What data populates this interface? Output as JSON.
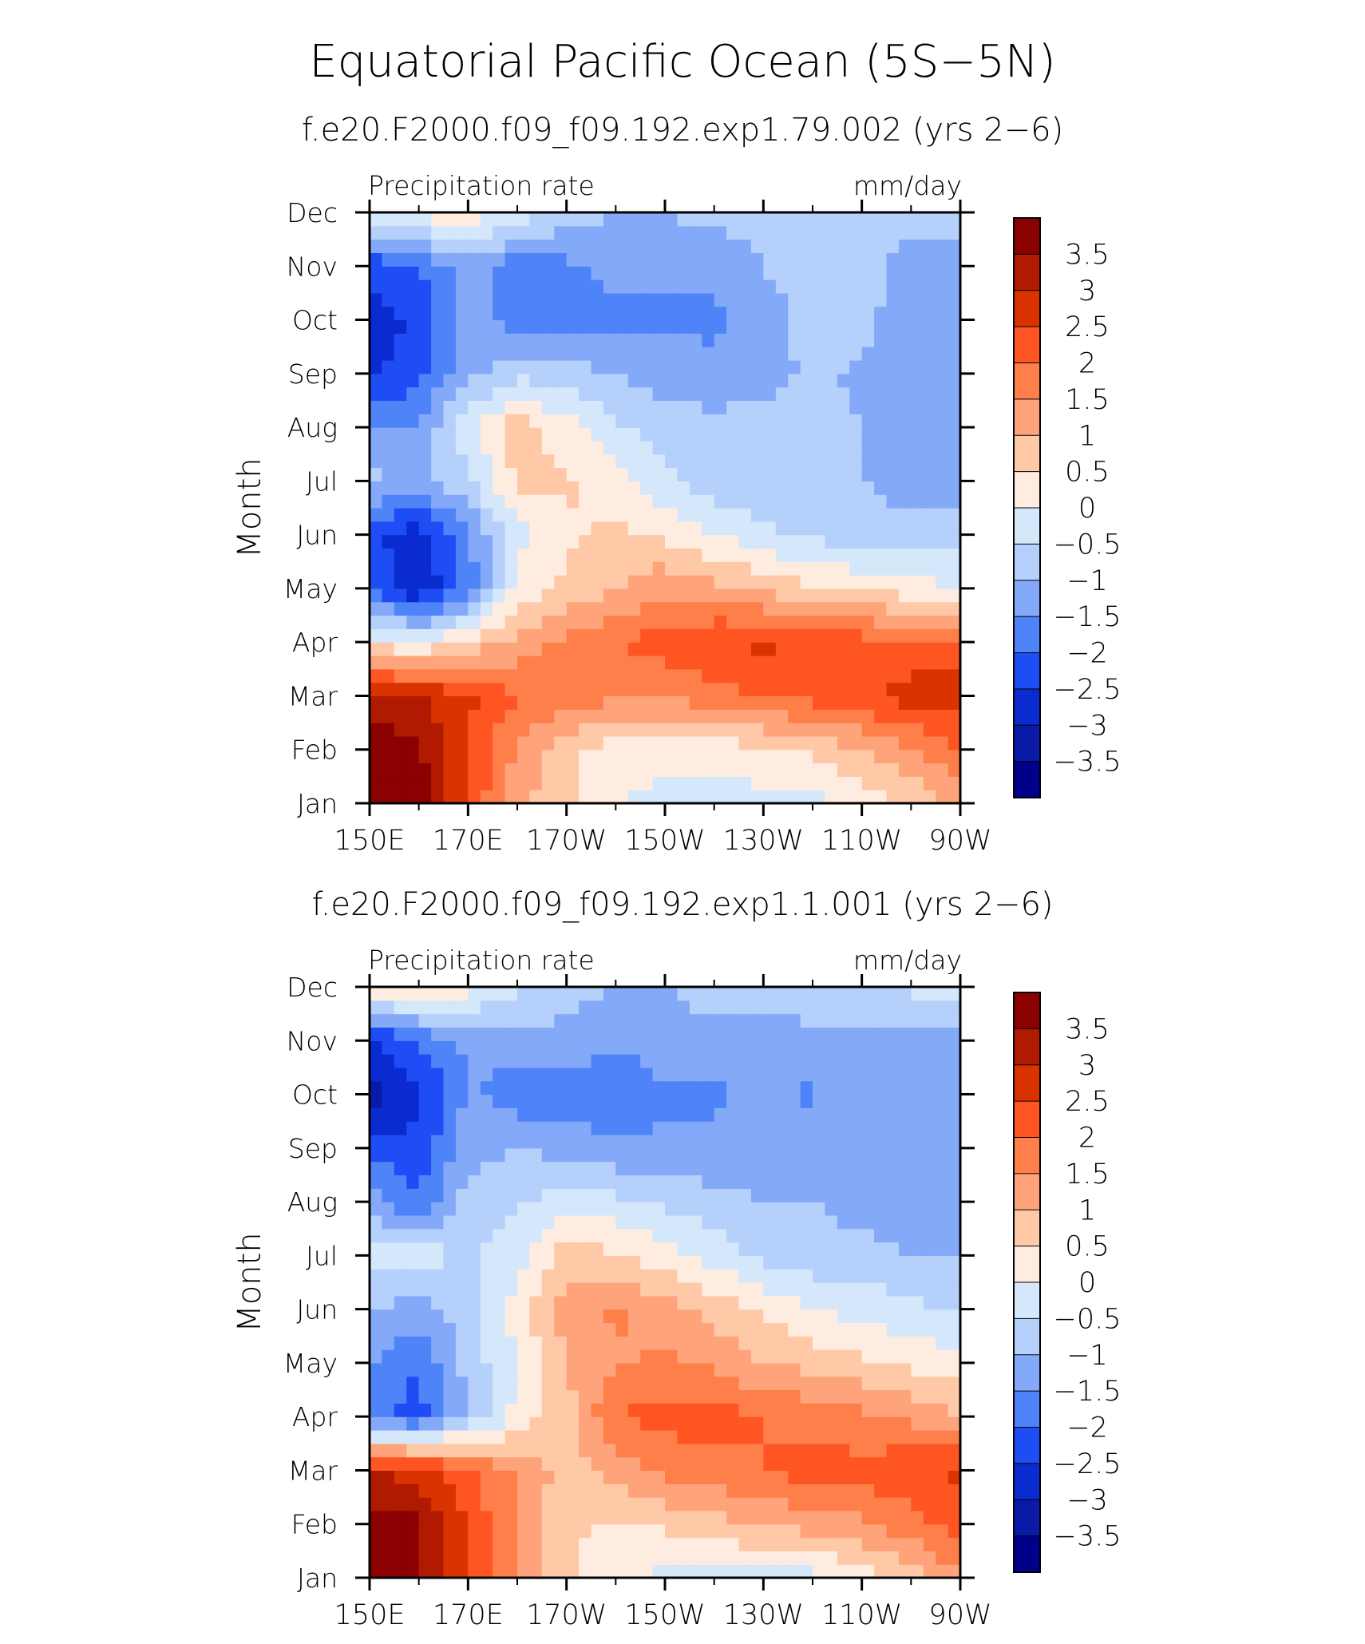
{
  "chart_data": {
    "title": "Equatorial Pacific Ocean (5S−5N)",
    "panels": [
      {
        "type": "heatmap",
        "subtitle": "f.e20.F2000.f09_f09.192.exp1.79.002 (yrs 2−6)",
        "variable_label": "Precipitation rate",
        "units_label": "mm/day",
        "xlabel": "",
        "ylabel": "Month",
        "x_ticks": [
          "150E",
          "170E",
          "170W",
          "150W",
          "130W",
          "110W",
          "90W"
        ],
        "x_values": [
          150,
          170,
          190,
          210,
          230,
          250,
          270
        ],
        "y_ticks": [
          "Jan",
          "Feb",
          "Mar",
          "Apr",
          "May",
          "Jun",
          "Jul",
          "Aug",
          "Sep",
          "Oct",
          "Nov",
          "Dec"
        ],
        "xlim": [
          150,
          270
        ],
        "grid": false,
        "z": [
          [
            4.0,
            3.8,
            2.4,
            1.2,
            0.6,
            0.0,
            -0.2,
            -0.2,
            -0.2,
            -0.2,
            0.2,
            0.6,
            1.2
          ],
          [
            4.0,
            3.6,
            2.6,
            1.4,
            0.6,
            0.3,
            0.2,
            0.2,
            0.4,
            0.6,
            1.0,
            1.4,
            2.0
          ],
          [
            3.2,
            3.0,
            2.6,
            2.0,
            1.8,
            1.6,
            1.6,
            1.8,
            2.0,
            2.2,
            2.4,
            2.8,
            2.8
          ],
          [
            0.3,
            0.0,
            0.6,
            1.2,
            1.6,
            2.0,
            2.2,
            2.5,
            2.6,
            2.4,
            2.2,
            2.0,
            2.0
          ],
          [
            -2.0,
            -3.0,
            -1.8,
            0.2,
            0.6,
            1.0,
            1.4,
            1.2,
            0.8,
            0.6,
            0.4,
            0.2,
            0.0
          ],
          [
            -2.4,
            -2.8,
            -1.6,
            -0.2,
            0.4,
            0.6,
            0.4,
            0.0,
            -0.4,
            -0.6,
            -0.8,
            -0.8,
            -0.8
          ],
          [
            -0.8,
            -1.2,
            -0.6,
            0.6,
            0.6,
            0.2,
            -0.4,
            -0.8,
            -0.8,
            -0.8,
            -1.0,
            -1.2,
            -1.2
          ],
          [
            -1.6,
            -1.4,
            -0.2,
            0.8,
            0.2,
            -0.4,
            -0.8,
            -0.8,
            -0.8,
            -0.8,
            -1.0,
            -1.4,
            -1.4
          ],
          [
            -2.6,
            -2.2,
            -1.2,
            -0.6,
            -0.8,
            -1.0,
            -1.2,
            -1.4,
            -1.2,
            -0.9,
            -1.1,
            -1.4,
            -1.4
          ],
          [
            -2.8,
            -2.4,
            -1.2,
            -1.8,
            -1.6,
            -1.6,
            -1.6,
            -1.6,
            -1.2,
            -0.8,
            -0.8,
            -1.4,
            -1.4
          ],
          [
            -2.4,
            -2.0,
            -1.2,
            -1.8,
            -1.6,
            -1.4,
            -1.4,
            -1.4,
            -1.0,
            -0.8,
            -0.8,
            -1.2,
            -1.2
          ],
          [
            0.0,
            0.2,
            0.4,
            -0.2,
            -0.8,
            -1.0,
            -1.0,
            -0.8,
            -0.8,
            -0.8,
            -0.8,
            -0.8,
            -0.8
          ]
        ]
      },
      {
        "type": "heatmap",
        "subtitle": "f.e20.F2000.f09_f09.192.exp1.1.001 (yrs 2−6)",
        "variable_label": "Precipitation rate",
        "units_label": "mm/day",
        "xlabel": "",
        "ylabel": "Month",
        "x_ticks": [
          "150E",
          "170E",
          "170W",
          "150W",
          "130W",
          "110W",
          "90W"
        ],
        "x_values": [
          150,
          170,
          190,
          210,
          230,
          250,
          270
        ],
        "y_ticks": [
          "Jan",
          "Feb",
          "Mar",
          "Apr",
          "May",
          "Jun",
          "Jul",
          "Aug",
          "Sep",
          "Oct",
          "Nov",
          "Dec"
        ],
        "xlim": [
          150,
          270
        ],
        "grid": false,
        "z": [
          [
            3.8,
            3.6,
            2.6,
            1.6,
            0.6,
            0.2,
            -0.2,
            -0.2,
            -0.2,
            -0.2,
            0.2,
            0.8,
            1.4
          ],
          [
            3.8,
            3.6,
            2.4,
            1.4,
            0.6,
            0.4,
            0.6,
            0.8,
            1.0,
            1.2,
            1.4,
            1.8,
            2.2
          ],
          [
            3.0,
            2.8,
            2.2,
            1.4,
            0.8,
            1.2,
            1.6,
            1.8,
            2.0,
            2.2,
            2.2,
            2.4,
            2.6
          ],
          [
            -1.8,
            -2.2,
            -1.0,
            0.2,
            0.8,
            2.0,
            2.2,
            2.2,
            2.0,
            1.8,
            1.6,
            1.4,
            1.0
          ],
          [
            -1.4,
            -2.0,
            -0.8,
            0.0,
            1.0,
            1.4,
            1.6,
            1.4,
            1.0,
            0.8,
            0.6,
            0.4,
            0.2
          ],
          [
            -1.0,
            -1.2,
            -0.8,
            0.2,
            1.2,
            1.6,
            1.2,
            0.8,
            0.4,
            0.0,
            -0.2,
            -0.4,
            -0.6
          ],
          [
            -0.4,
            -0.2,
            -0.6,
            -0.2,
            0.8,
            0.6,
            0.2,
            -0.2,
            -0.6,
            -0.8,
            -0.8,
            -1.0,
            -1.0
          ],
          [
            -1.2,
            -2.0,
            -0.8,
            -0.6,
            -0.2,
            -0.4,
            -0.6,
            -0.8,
            -1.0,
            -1.0,
            -1.2,
            -1.4,
            -1.4
          ],
          [
            -2.2,
            -2.4,
            -1.2,
            -1.0,
            -1.2,
            -1.4,
            -1.4,
            -1.4,
            -1.2,
            -1.2,
            -1.0,
            -1.4,
            -1.4
          ],
          [
            -3.2,
            -2.6,
            -1.4,
            -1.8,
            -1.8,
            -2.0,
            -1.6,
            -1.6,
            -1.4,
            -1.6,
            -1.0,
            -1.4,
            -1.4
          ],
          [
            -2.6,
            -2.0,
            -1.4,
            -1.2,
            -1.2,
            -1.4,
            -1.2,
            -1.2,
            -1.2,
            -1.2,
            -1.2,
            -1.2,
            -1.2
          ],
          [
            0.4,
            0.8,
            0.2,
            -0.4,
            -0.8,
            -1.0,
            -1.0,
            -0.8,
            -0.8,
            -0.6,
            -0.6,
            -0.4,
            -0.4
          ]
        ]
      }
    ],
    "colorbar": {
      "labels": [
        "3.5",
        "3",
        "2.5",
        "2",
        "1.5",
        "1",
        "0.5",
        "0",
        "−0.5",
        "−1",
        "−1.5",
        "−2",
        "−2.5",
        "−3",
        "−3.5"
      ],
      "levels": [
        3.5,
        3,
        2.5,
        2,
        1.5,
        1,
        0.5,
        0,
        -0.5,
        -1,
        -1.5,
        -2,
        -2.5,
        -3,
        -3.5
      ],
      "colors": [
        "#8b0000",
        "#b01a00",
        "#d93300",
        "#ff5522",
        "#ff7f4a",
        "#ffa37a",
        "#ffc9a8",
        "#ffece0",
        "#d4e7fb",
        "#b5d0fb",
        "#84a9f8",
        "#4f83f8",
        "#1f4df5",
        "#0a2bd0",
        "#0a1aa8",
        "#00008b"
      ]
    }
  }
}
